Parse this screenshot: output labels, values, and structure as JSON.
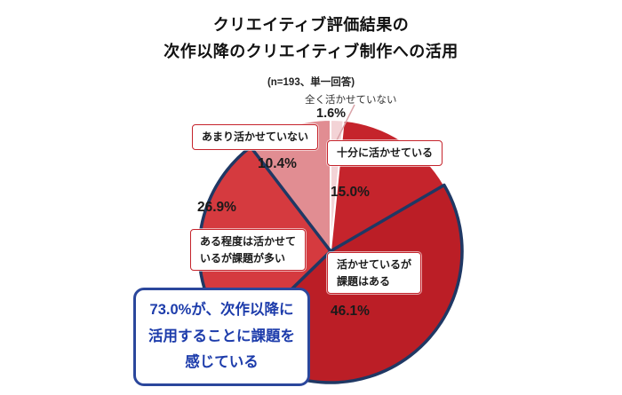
{
  "title": {
    "line1": "クリエイティブ評価結果の",
    "line2": "次作以降のクリエイティブ制作への活用",
    "subtitle": "(n=193、単一回答)"
  },
  "chart_data": {
    "type": "pie",
    "title": "クリエイティブ評価結果の次作以降のクリエイティブ制作への活用",
    "sample_note": "n=193、単一回答",
    "start_angle_deg": -90,
    "direction": "clockwise",
    "unit": "%",
    "slices": [
      {
        "label": "全く活かせていない",
        "value": 1.6,
        "color": "#f3d3d6",
        "highlighted": false
      },
      {
        "label": "十分に活かせている",
        "value": 15.0,
        "color": "#c5242c",
        "highlighted": false
      },
      {
        "label": "活かせているが課題はある",
        "value": 46.1,
        "color": "#bb1e26",
        "highlighted": true
      },
      {
        "label": "ある程度は活かせているが課題が多い",
        "value": 26.9,
        "color": "#d53a3f",
        "highlighted": true
      },
      {
        "label": "あまり活かせていない",
        "value": 10.4,
        "color": "#e18d92",
        "highlighted": false
      }
    ],
    "highlight_stroke": "#1f3864",
    "annotation": "73.0%が、次作以降に活用することに課題を感じている"
  },
  "labels": {
    "zenku": {
      "text": "全く活かせていない",
      "pct": "1.6%"
    },
    "amari": {
      "text": "あまり活かせていない",
      "pct": "10.4%"
    },
    "juubun": {
      "text": "十分に活かせている",
      "pct": "15.0%"
    },
    "ikasete": {
      "line1": "活かせているが",
      "line2": "課題はある",
      "pct": "46.1%"
    },
    "aruteido": {
      "line1": "ある程度は活かせて",
      "line2": "いるが課題が多い",
      "pct": "26.9%"
    }
  },
  "callout": {
    "line1": "73.0%が、次作以降に",
    "line2": "活用することに課題を",
    "line3": "感じている"
  }
}
